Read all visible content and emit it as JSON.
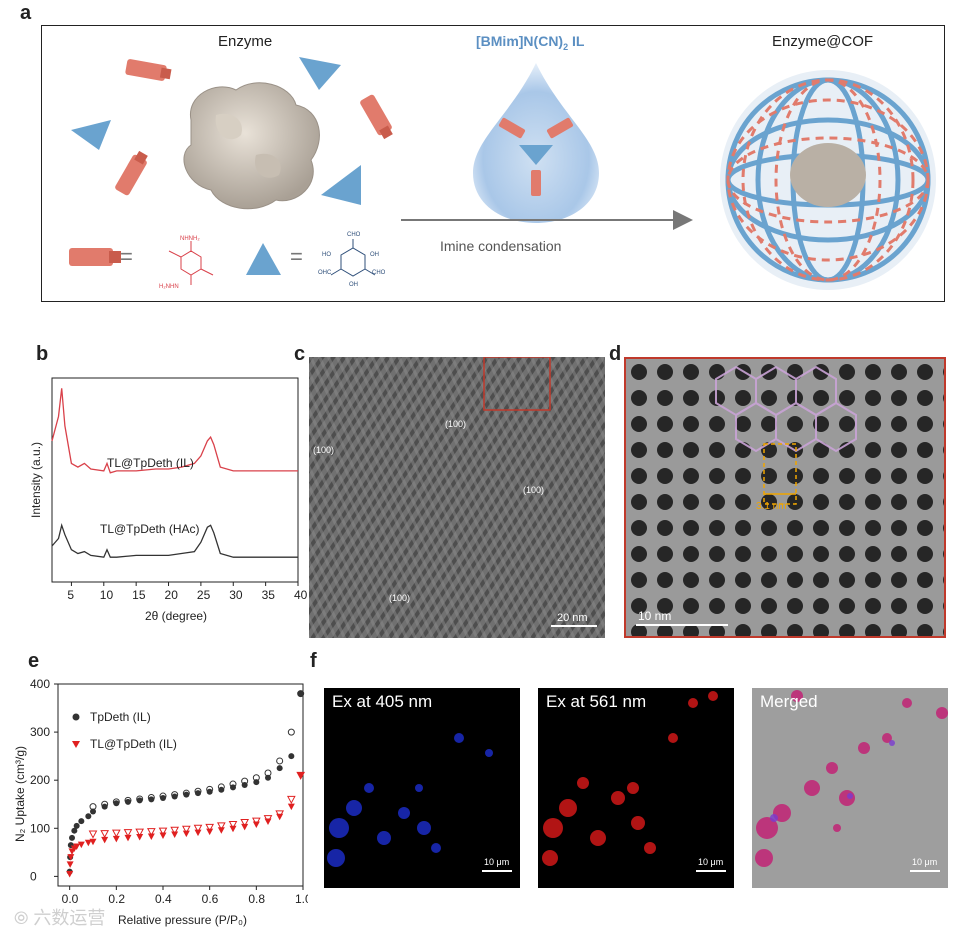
{
  "panels": {
    "a": "a",
    "b": "b",
    "c": "c",
    "d": "d",
    "e": "e",
    "f": "f"
  },
  "panel_a": {
    "enzyme_label": "Enzyme",
    "il_label": "[BMim]N(CN)",
    "il_sub": "2",
    "il_suffix": " IL",
    "product_label": "Enzyme@COF",
    "arrow_label": "Imine condensation",
    "equals1": "=",
    "equals2": "=",
    "molecule_labels": {
      "nhnh2_top": "NHNH₂",
      "nhnh2_bottom": "H₂NHN",
      "cho_top": "CHO",
      "oh_left": "HO",
      "oh_right": "OH",
      "ohc": "OHC",
      "cho_right": "CHO",
      "oh_bottom": "OH"
    }
  },
  "panel_b": {
    "ylabel": "Intensity (a.u.)",
    "xlabel": "2θ (degree)",
    "ticks": [
      "5",
      "10",
      "15",
      "20",
      "25",
      "30",
      "35",
      "40"
    ],
    "label_il": "TL@TpDeth (IL)",
    "label_hac": "TL@TpDeth (HAc)"
  },
  "panel_c": {
    "annotations": [
      "(100)",
      "(100)",
      "(100)",
      "(100)"
    ],
    "scale_text": "20 nm"
  },
  "panel_d": {
    "distance": "3.1 nm",
    "scale_text": "10 nm"
  },
  "panel_e": {
    "ylabel": "N₂ Uptake (cm³/g)",
    "xlabel": "Relative pressure (P/P₀)",
    "yticks": [
      "0",
      "100",
      "200",
      "300",
      "400"
    ],
    "xticks": [
      "0.0",
      "0.2",
      "0.4",
      "0.6",
      "0.8",
      "1.0"
    ],
    "legend1": "TpDeth (IL)",
    "legend2": "TL@TpDeth (IL)"
  },
  "panel_f": {
    "titles": [
      "Ex at 405 nm",
      "Ex at 561 nm",
      "Merged"
    ],
    "scale_text": "10 μm"
  },
  "watermark": "六数运营",
  "colors": {
    "red": "#d9414a",
    "black": "#333333",
    "blue": "#5b8fc2",
    "salmon": "#e17b6c",
    "frame_red": "#c0392b"
  },
  "chart_data": [
    {
      "type": "line",
      "title": "",
      "xlabel": "2θ (degree)",
      "ylabel": "Intensity (a.u.)",
      "xlim": [
        2,
        40
      ],
      "series": [
        {
          "name": "TL@TpDeth (IL)",
          "x": [
            2,
            3,
            3.5,
            4,
            5,
            6,
            7,
            8,
            10,
            10.5,
            11,
            12,
            15,
            18,
            20,
            22,
            24,
            25,
            26,
            26.5,
            27,
            28,
            30,
            35,
            40
          ],
          "y": [
            0.72,
            0.85,
            1.0,
            0.8,
            0.6,
            0.58,
            0.6,
            0.57,
            0.56,
            0.6,
            0.55,
            0.56,
            0.56,
            0.57,
            0.57,
            0.58,
            0.6,
            0.64,
            0.72,
            0.74,
            0.7,
            0.58,
            0.56,
            0.56,
            0.56
          ]
        },
        {
          "name": "TL@TpDeth (HAc)",
          "x": [
            2,
            3,
            3.5,
            4,
            5,
            6,
            7,
            8,
            10,
            10.5,
            11,
            12,
            15,
            18,
            20,
            22,
            24,
            25,
            26,
            26.5,
            27,
            28,
            30,
            35,
            40
          ],
          "y": [
            0.16,
            0.2,
            0.27,
            0.22,
            0.14,
            0.12,
            0.13,
            0.11,
            0.1,
            0.14,
            0.1,
            0.1,
            0.11,
            0.11,
            0.11,
            0.12,
            0.13,
            0.18,
            0.26,
            0.27,
            0.23,
            0.12,
            0.1,
            0.1,
            0.1
          ]
        }
      ]
    },
    {
      "type": "scatter",
      "title": "",
      "xlabel": "Relative pressure (P/P₀)",
      "ylabel": "N₂ Uptake (cm³/g)",
      "xlim": [
        -0.05,
        1.0
      ],
      "ylim": [
        -20,
        400
      ],
      "series": [
        {
          "name": "TpDeth (IL)",
          "marker": "circle",
          "adsorption": {
            "x": [
              0.0,
              0.002,
              0.005,
              0.01,
              0.02,
              0.03,
              0.05,
              0.08,
              0.1,
              0.15,
              0.2,
              0.25,
              0.3,
              0.35,
              0.4,
              0.45,
              0.5,
              0.55,
              0.6,
              0.65,
              0.7,
              0.75,
              0.8,
              0.85,
              0.9,
              0.95,
              0.99
            ],
            "y": [
              10,
              40,
              65,
              80,
              95,
              105,
              115,
              125,
              135,
              145,
              152,
              155,
              158,
              160,
              163,
              166,
              170,
              173,
              176,
              180,
              185,
              190,
              196,
              205,
              225,
              250,
              380
            ]
          },
          "desorption": {
            "x": [
              0.99,
              0.95,
              0.9,
              0.85,
              0.8,
              0.75,
              0.7,
              0.65,
              0.6,
              0.55,
              0.5,
              0.45,
              0.4,
              0.35,
              0.3,
              0.25,
              0.2,
              0.15,
              0.1
            ],
            "y": [
              380,
              300,
              240,
              215,
              205,
              198,
              192,
              186,
              181,
              177,
              173,
              170,
              167,
              164,
              161,
              158,
              155,
              150,
              145
            ]
          }
        },
        {
          "name": "TL@TpDeth (IL)",
          "marker": "triangle-down",
          "adsorption": {
            "x": [
              0.0,
              0.002,
              0.005,
              0.01,
              0.02,
              0.03,
              0.05,
              0.08,
              0.1,
              0.15,
              0.2,
              0.25,
              0.3,
              0.35,
              0.4,
              0.45,
              0.5,
              0.55,
              0.6,
              0.65,
              0.7,
              0.75,
              0.8,
              0.85,
              0.9,
              0.95,
              0.99
            ],
            "y": [
              5,
              25,
              40,
              52,
              58,
              62,
              66,
              70,
              72,
              76,
              78,
              80,
              82,
              83,
              85,
              87,
              89,
              91,
              93,
              96,
              99,
              103,
              108,
              114,
              124,
              145,
              210
            ]
          },
          "desorption": {
            "x": [
              0.99,
              0.95,
              0.9,
              0.85,
              0.8,
              0.75,
              0.7,
              0.65,
              0.6,
              0.55,
              0.5,
              0.45,
              0.4,
              0.35,
              0.3,
              0.25,
              0.2,
              0.15,
              0.1
            ],
            "y": [
              210,
              160,
              130,
              120,
              115,
              112,
              108,
              105,
              102,
              100,
              98,
              96,
              94,
              93,
              92,
              91,
              90,
              89,
              88
            ]
          }
        }
      ]
    }
  ]
}
